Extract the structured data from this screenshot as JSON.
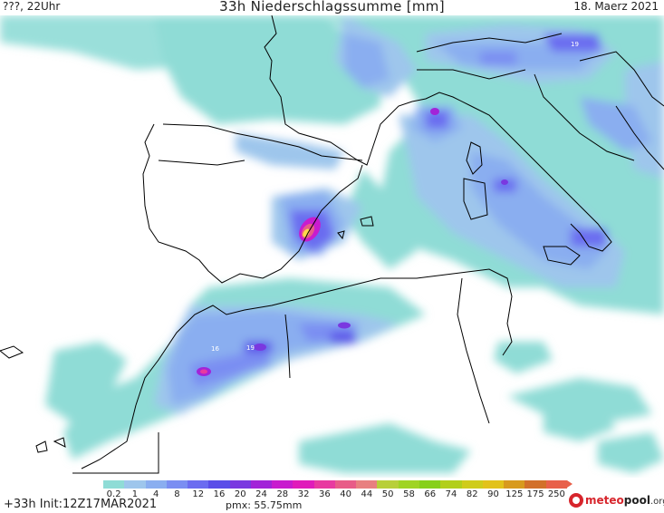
{
  "header": {
    "left_label": "???, 22Uhr",
    "title": "33h Niederschlagssumme [mm]",
    "date": "18. Maerz 2021"
  },
  "legend": {
    "values": [
      "0.2",
      "1",
      "4",
      "8",
      "12",
      "16",
      "20",
      "24",
      "28",
      "32",
      "36",
      "40",
      "44",
      "50",
      "58",
      "66",
      "74",
      "82",
      "90",
      "125",
      "175",
      "250"
    ],
    "colors": [
      "#8fdcd6",
      "#9ec6ec",
      "#8aaef0",
      "#7a8ef2",
      "#6b6cf0",
      "#5a4de8",
      "#7a38e0",
      "#a224d8",
      "#c81cce",
      "#e01cba",
      "#e83aa0",
      "#e85c88",
      "#e88080",
      "#b8cf3a",
      "#9fd424",
      "#86d01a",
      "#b2cf1a",
      "#cfcc1a",
      "#e2c21a",
      "#d89a1e",
      "#d2702a",
      "#e8604a"
    ]
  },
  "footer": {
    "run_label": "+33h  Init:12Z17MAR2021",
    "pmx": "pmx: 55.75mm"
  },
  "logo": {
    "part1": "meteo",
    "part2": "pool",
    "part3": ".org"
  },
  "map_labels": {
    "label_a": "19",
    "label_b": "16",
    "label_c": "19"
  }
}
